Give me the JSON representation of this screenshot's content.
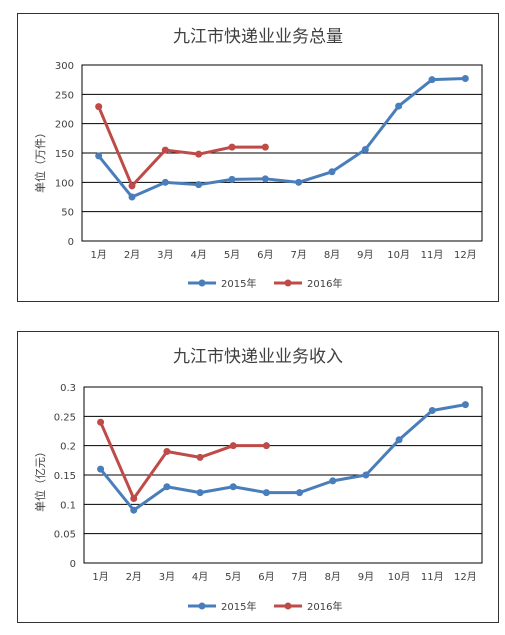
{
  "chart_data": [
    {
      "type": "line",
      "title": "九江市快递业业务总量",
      "ylabel": "单位（万件）",
      "xlabel": "",
      "categories": [
        "1月",
        "2月",
        "3月",
        "4月",
        "5月",
        "6月",
        "7月",
        "8月",
        "9月",
        "10月",
        "11月",
        "12月"
      ],
      "yticks": [
        "0",
        "50",
        "100",
        "150",
        "200",
        "250",
        "300"
      ],
      "ylim": [
        0,
        300
      ],
      "grid": true,
      "legend": "bottom",
      "series": [
        {
          "name": "2015年",
          "color": "#4a7ebb",
          "values": [
            145,
            75,
            100,
            96,
            105,
            106,
            100,
            118,
            156,
            230,
            275,
            277
          ]
        },
        {
          "name": "2016年",
          "color": "#be4b48",
          "values": [
            229,
            94,
            155,
            148,
            160,
            160,
            null,
            null,
            null,
            null,
            null,
            null
          ]
        }
      ]
    },
    {
      "type": "line",
      "title": "九江市快递业业务收入",
      "ylabel": "单位（亿元）",
      "xlabel": "",
      "categories": [
        "1月",
        "2月",
        "3月",
        "4月",
        "5月",
        "6月",
        "7月",
        "8月",
        "9月",
        "10月",
        "11月",
        "12月"
      ],
      "yticks": [
        "0",
        "0.05",
        "0.1",
        "0.15",
        "0.2",
        "0.25",
        "0.3"
      ],
      "ylim": [
        0,
        0.3
      ],
      "grid": true,
      "legend": "bottom",
      "series": [
        {
          "name": "2015年",
          "color": "#4a7ebb",
          "values": [
            0.16,
            0.09,
            0.13,
            0.12,
            0.13,
            0.12,
            0.12,
            0.14,
            0.15,
            0.21,
            0.26,
            0.27
          ]
        },
        {
          "name": "2016年",
          "color": "#be4b48",
          "values": [
            0.24,
            0.11,
            0.19,
            0.18,
            0.2,
            0.2,
            null,
            null,
            null,
            null,
            null,
            null
          ]
        }
      ]
    }
  ]
}
